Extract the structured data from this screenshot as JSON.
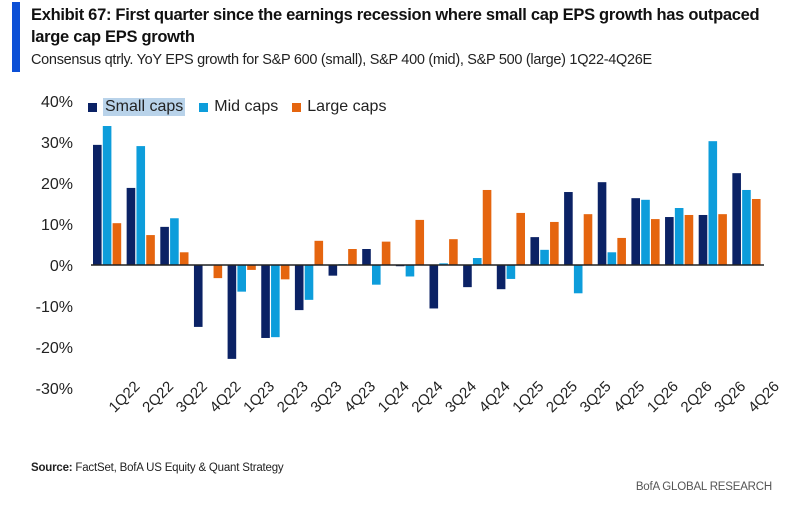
{
  "header": {
    "title": "Exhibit 67: First quarter since the earnings recession where small cap EPS growth has outpaced large cap EPS growth",
    "subtitle": "Consensus qtrly. YoY EPS growth for S&P 600 (small), S&P 400 (mid), S&P 500 (large) 1Q22-4Q26E",
    "accent_color": "#0b4fd6"
  },
  "footer": {
    "source_label": "Source:",
    "source_text": " FactSet, BofA US Equity & Quant Strategy",
    "brand": "BofA GLOBAL RESEARCH"
  },
  "chart_data": {
    "type": "bar",
    "title": "Exhibit 67: First quarter since the earnings recession where small cap EPS growth has outpaced large cap EPS growth",
    "subtitle": "Consensus qtrly. YoY EPS growth for S&P 600 (small), S&P 400 (mid), S&P 500 (large) 1Q22-4Q26E",
    "xlabel": "",
    "ylabel": "",
    "ylim": [
      -30,
      40
    ],
    "yticks": [
      40,
      30,
      20,
      10,
      0,
      -10,
      -20,
      -30
    ],
    "ytick_labels": [
      "40%",
      "30%",
      "20%",
      "10%",
      "0%",
      "-10%",
      "-20%",
      "-30%"
    ],
    "grid": false,
    "legend_position": "top-left",
    "categories": [
      "1Q22",
      "2Q22",
      "3Q22",
      "4Q22",
      "1Q23",
      "2Q23",
      "3Q23",
      "4Q23",
      "1Q24",
      "2Q24",
      "3Q24",
      "4Q24",
      "1Q25",
      "2Q25",
      "3Q25",
      "4Q25",
      "1Q26",
      "2Q26",
      "3Q26",
      "4Q26"
    ],
    "series": [
      {
        "name": "Small caps",
        "color": "#0b2265",
        "highlighted": true,
        "values": [
          29.3,
          18.8,
          9.3,
          -15.1,
          -22.9,
          -17.8,
          -11.0,
          -2.6,
          3.9,
          -0.3,
          -10.6,
          -5.4,
          -5.9,
          6.8,
          17.8,
          20.2,
          16.3,
          11.7,
          12.2,
          22.4
        ]
      },
      {
        "name": "Mid caps",
        "color": "#0d9ddb",
        "values": [
          33.9,
          29.0,
          11.4,
          0.0,
          -6.5,
          -17.6,
          -8.5,
          0.2,
          -4.8,
          -2.8,
          0.4,
          1.7,
          -3.4,
          3.7,
          -6.9,
          3.1,
          15.9,
          13.9,
          30.2,
          18.3
        ]
      },
      {
        "name": "Large caps",
        "color": "#e5650f",
        "values": [
          10.2,
          7.3,
          3.1,
          -3.2,
          -1.2,
          -3.5,
          5.9,
          3.9,
          5.7,
          11.0,
          6.3,
          18.3,
          12.7,
          10.5,
          12.4,
          6.6,
          11.2,
          12.2,
          12.4,
          16.1
        ]
      }
    ]
  }
}
